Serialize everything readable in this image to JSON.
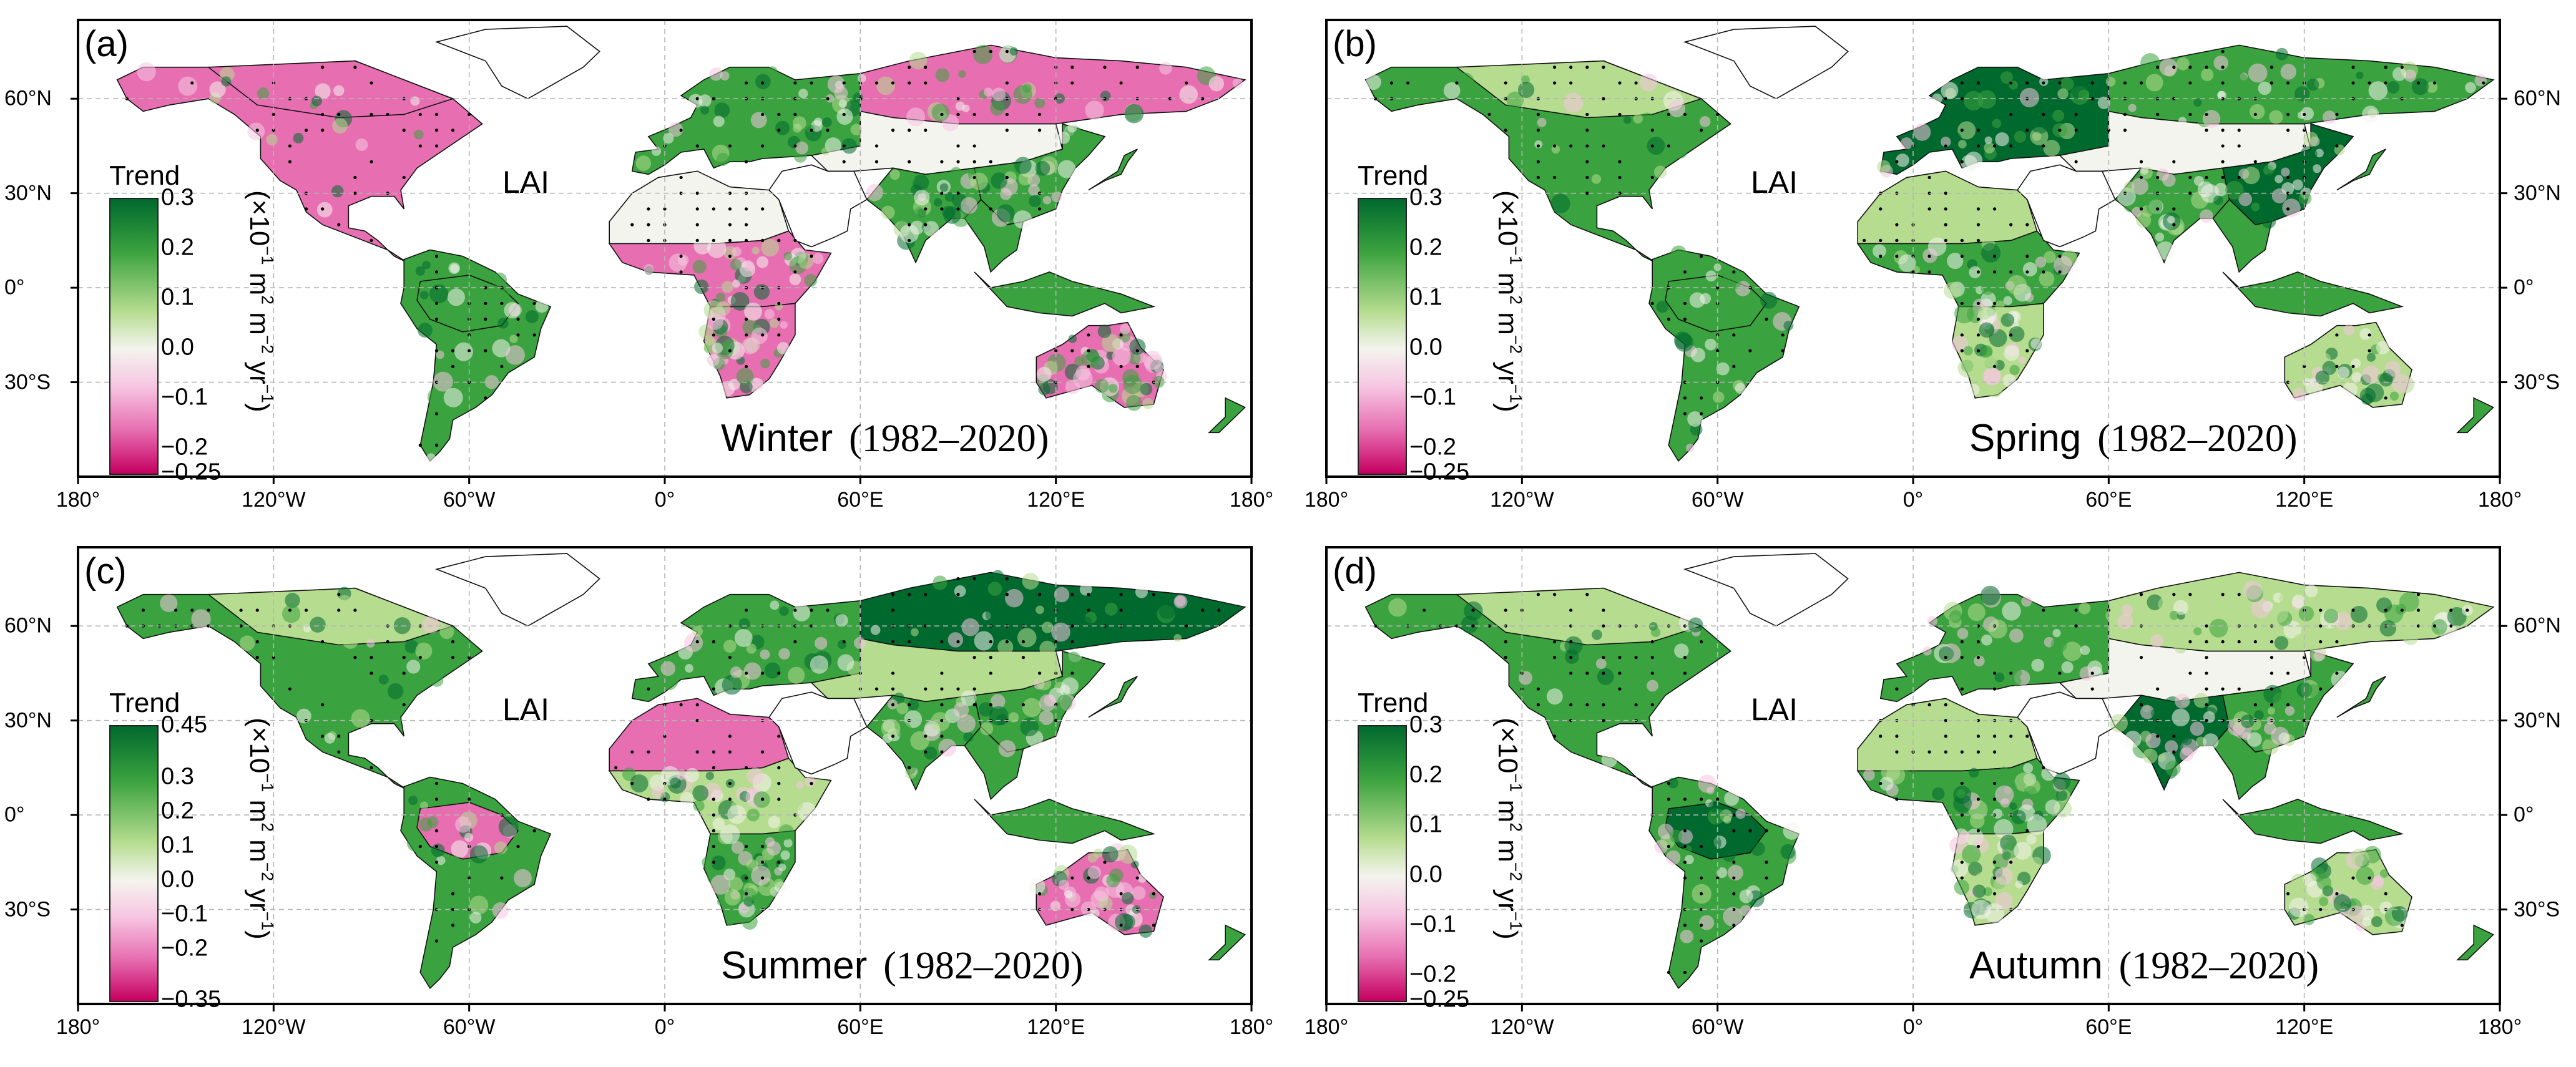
{
  "figure": {
    "variable_label": "LAI",
    "colorbar_title": "Trend",
    "unit": {
      "pre": "(×10",
      "e1": "−1",
      "mid": " m",
      "e2": "2",
      "mid2": " m",
      "e3": "−2",
      "mid3": " yr",
      "e4": "−1",
      "post": ")"
    },
    "period": "(1982–2020)",
    "lon_ticks": [
      {
        "label": "180°",
        "lon": -180
      },
      {
        "label": "120°W",
        "lon": -120
      },
      {
        "label": "60°W",
        "lon": -60
      },
      {
        "label": "0°",
        "lon": 0
      },
      {
        "label": "60°E",
        "lon": 60
      },
      {
        "label": "120°E",
        "lon": 120
      },
      {
        "label": "180°",
        "lon": 180
      }
    ],
    "lat_ticks": [
      {
        "label": "60°N",
        "lat": 60
      },
      {
        "label": "30°N",
        "lat": 30
      },
      {
        "label": "0°",
        "lat": 0
      },
      {
        "label": "30°S",
        "lat": -30
      }
    ],
    "map_extent": {
      "lon": [
        -180,
        180
      ],
      "lat": [
        -60,
        85
      ]
    },
    "colors": {
      "green_dark": "#00692e",
      "green": "#3aa23e",
      "green_light": "#b5dc8f",
      "neutral": "#f4f4ee",
      "pink_light": "#f6c6e2",
      "pink": "#e76fb1",
      "magenta": "#c5005f",
      "stipple": "#000000"
    }
  },
  "panels": [
    {
      "label": "(a)",
      "season": "Winter",
      "ticks_side": "left",
      "colorbar": {
        "min": -0.25,
        "max": 0.3,
        "ticks": [
          {
            "label": "0.3",
            "v": 0.3
          },
          {
            "label": "0.2",
            "v": 0.2
          },
          {
            "label": "0.1",
            "v": 0.1
          },
          {
            "label": "0.0",
            "v": 0.0
          },
          {
            "label": "−0.1",
            "v": -0.1
          },
          {
            "label": "−0.2",
            "v": -0.2
          },
          {
            "label": "−0.25",
            "v": -0.25
          }
        ]
      },
      "region_trend": {
        "north_america": "pink",
        "boreal_na": "pink",
        "south_america": "green",
        "amazon": "green",
        "europe": "green",
        "siberia": "pink",
        "central_asia": "neutral",
        "south_asia": "green",
        "east_asia": "green",
        "africa_sahel": "neutral",
        "africa_central": "pink",
        "africa_south": "pink",
        "australia": "pink",
        "se_asia": "green"
      }
    },
    {
      "label": "(b)",
      "season": "Spring",
      "ticks_side": "right",
      "colorbar": {
        "min": -0.25,
        "max": 0.3,
        "ticks": [
          {
            "label": "0.3",
            "v": 0.3
          },
          {
            "label": "0.2",
            "v": 0.2
          },
          {
            "label": "0.1",
            "v": 0.1
          },
          {
            "label": "0.0",
            "v": 0.0
          },
          {
            "label": "−0.1",
            "v": -0.1
          },
          {
            "label": "−0.2",
            "v": -0.2
          },
          {
            "label": "−0.25",
            "v": -0.25
          }
        ]
      },
      "region_trend": {
        "north_america": "green",
        "boreal_na": "green_light",
        "south_america": "green",
        "amazon": "green",
        "europe": "green_dark",
        "siberia": "green",
        "central_asia": "neutral",
        "south_asia": "green",
        "east_asia": "green_dark",
        "africa_sahel": "green_light",
        "africa_central": "green",
        "africa_south": "green_light",
        "australia": "green_light",
        "se_asia": "green"
      }
    },
    {
      "label": "(c)",
      "season": "Summer",
      "ticks_side": "left",
      "colorbar": {
        "min": -0.35,
        "max": 0.45,
        "ticks": [
          {
            "label": "0.45",
            "v": 0.45
          },
          {
            "label": "0.3",
            "v": 0.3
          },
          {
            "label": "0.2",
            "v": 0.2
          },
          {
            "label": "0.1",
            "v": 0.1
          },
          {
            "label": "0.0",
            "v": 0.0
          },
          {
            "label": "−0.1",
            "v": -0.1
          },
          {
            "label": "−0.2",
            "v": -0.2
          },
          {
            "label": "−0.35",
            "v": -0.35
          }
        ]
      },
      "region_trend": {
        "north_america": "green",
        "boreal_na": "green_light",
        "south_america": "green",
        "amazon": "pink",
        "europe": "green",
        "siberia": "green_dark",
        "central_asia": "green_light",
        "south_asia": "green",
        "east_asia": "green",
        "africa_sahel": "pink",
        "africa_central": "green_light",
        "africa_south": "green",
        "australia": "pink",
        "se_asia": "green"
      }
    },
    {
      "label": "(d)",
      "season": "Autumn",
      "ticks_side": "right",
      "colorbar": {
        "min": -0.25,
        "max": 0.3,
        "ticks": [
          {
            "label": "0.3",
            "v": 0.3
          },
          {
            "label": "0.2",
            "v": 0.2
          },
          {
            "label": "0.1",
            "v": 0.1
          },
          {
            "label": "0.0",
            "v": 0.0
          },
          {
            "label": "−0.1",
            "v": -0.1
          },
          {
            "label": "−0.2",
            "v": -0.2
          },
          {
            "label": "−0.25",
            "v": -0.25
          }
        ]
      },
      "region_trend": {
        "north_america": "green",
        "boreal_na": "green_light",
        "south_america": "green",
        "amazon": "green_dark",
        "europe": "green",
        "siberia": "green_light",
        "central_asia": "neutral",
        "south_asia": "green_dark",
        "east_asia": "green",
        "africa_sahel": "green_light",
        "africa_central": "green",
        "africa_south": "green_light",
        "australia": "green_light",
        "se_asia": "green"
      }
    }
  ]
}
